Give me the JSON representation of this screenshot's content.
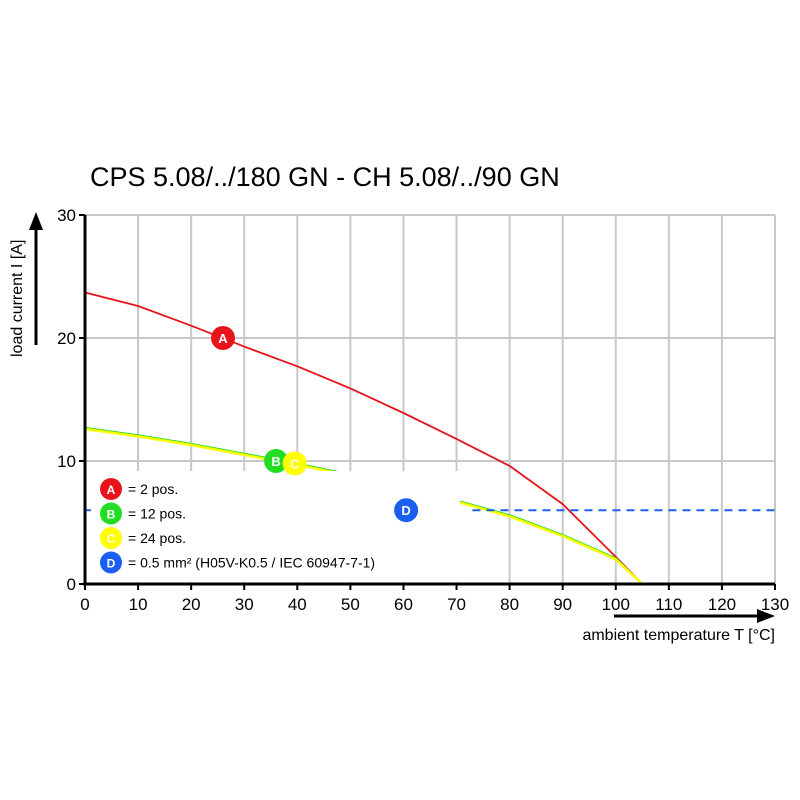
{
  "chart_data": {
    "type": "line",
    "title": "CPS 5.08/../180 GN - CH 5.08/../90 GN",
    "xlabel": "ambient temperature T [°C]",
    "ylabel": "load current I [A]",
    "xlim": [
      0,
      130
    ],
    "ylim": [
      0,
      30
    ],
    "xticks": [
      "0",
      "10",
      "20",
      "30",
      "40",
      "50",
      "60",
      "70",
      "80",
      "90",
      "100",
      "110",
      "120",
      "130"
    ],
    "yticks": [
      "0",
      "10",
      "20",
      "30"
    ],
    "grid": true,
    "legend_placement": "bottom-left",
    "series": [
      {
        "name": "A",
        "label": "= 2 pos.",
        "color": "#e8141b",
        "x": [
          0,
          10,
          20,
          30,
          40,
          50,
          60,
          70,
          80,
          90,
          100,
          105
        ],
        "y": [
          23.7,
          22.6,
          21.0,
          19.3,
          17.7,
          15.9,
          13.9,
          11.8,
          9.6,
          6.5,
          2.2,
          0
        ],
        "marker": {
          "x": 26,
          "y": 20
        }
      },
      {
        "name": "B",
        "label": "= 12 pos.",
        "color": "#22dd22",
        "x": [
          0,
          10,
          20,
          30,
          40,
          50,
          60,
          70,
          80,
          90,
          100,
          105
        ],
        "y": [
          12.7,
          12.1,
          11.4,
          10.6,
          9.8,
          8.9,
          7.9,
          6.8,
          5.6,
          4.0,
          2.1,
          0
        ],
        "marker": {
          "x": 36,
          "y": 10
        }
      },
      {
        "name": "C",
        "label": "= 24 pos.",
        "color": "#ffff00",
        "x": [
          0,
          10,
          20,
          30,
          40,
          50,
          60,
          70,
          80,
          90,
          100,
          105
        ],
        "y": [
          12.6,
          12.0,
          11.3,
          10.5,
          9.7,
          8.8,
          7.8,
          6.7,
          5.5,
          3.9,
          2.0,
          0
        ],
        "marker": {
          "x": 39.5,
          "y": 9.8
        }
      },
      {
        "name": "D",
        "label": "= 0.5 mm² (H05V-K0.5 / IEC 60947-7-1)",
        "color": "#1a5ff0",
        "style": "dashed",
        "x": [
          73,
          130
        ],
        "y": [
          6,
          6
        ],
        "marker": {
          "x": 60.5,
          "y": 6
        }
      }
    ]
  }
}
